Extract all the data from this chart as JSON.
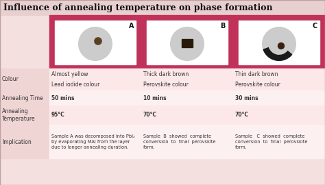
{
  "title": "Influence of annealing temperature on phase formation",
  "title_fontsize": 9,
  "bg_color": "#f5e0e0",
  "header_bg": "#c0325a",
  "label_col_bg": "#f0d0d0",
  "row_bg_light": "#fce8e8",
  "row_bg_lighter": "#fdf0f0",
  "text_color": "#222222",
  "label_color": "#333333",
  "border_color": "#c0325a",
  "samples": [
    "A",
    "B",
    "C"
  ],
  "colour_line1": [
    "Almost yellow",
    "Thick dark brown",
    "Thin dark brown"
  ],
  "colour_line2": [
    "Lead iodide colour",
    "Perovskite colour",
    "Perovskite colour"
  ],
  "annealing_time": [
    "50 mins",
    "10 mins",
    "30 mins"
  ],
  "annealing_temp": [
    "95°C",
    "70°C",
    "70°C"
  ],
  "implication": [
    "Sample A was decomposed into PbI₂\nby evaporating MAI from the layer\ndue to longer annealing duration.",
    "Sample  B  showed  complete\nconversion  to  final  perovskite\nform.",
    "Sample   C  showed  complete\nconversion  to  final  perovskite\nform."
  ],
  "row_labels": [
    "Colour",
    "Annealing Time",
    "Annealing\nTemperature",
    "Implication"
  ],
  "figsize": [
    4.74,
    2.7
  ],
  "dpi": 100
}
